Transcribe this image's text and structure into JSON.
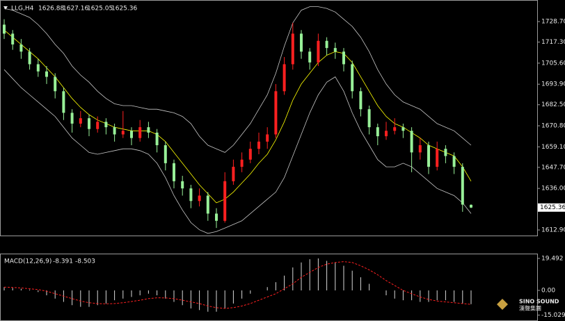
{
  "chart_data": [
    {
      "type": "candlestick",
      "title": "LLG,H4",
      "up_color": "#ff2020",
      "down_color": "#98f098",
      "ylim": [
        1610.2,
        1737.6
      ],
      "yticks": [
        {
          "value": 1728.7,
          "label": "1728.70"
        },
        {
          "value": 1717.3,
          "label": "1717.30"
        },
        {
          "value": 1705.6,
          "label": "1705.60"
        },
        {
          "value": 1693.9,
          "label": "1693.90"
        },
        {
          "value": 1682.5,
          "label": "1682.50"
        },
        {
          "value": 1670.8,
          "label": "1670.80"
        },
        {
          "value": 1659.1,
          "label": "1659.10"
        },
        {
          "value": 1647.7,
          "label": "1647.70"
        },
        {
          "value": 1636,
          "label": "1636.00"
        },
        {
          "value": 1612.9,
          "label": "1612.90"
        }
      ],
      "candles": [
        [
          1727,
          1730,
          1719,
          1722
        ],
        [
          1722,
          1724,
          1713,
          1716
        ],
        [
          1716,
          1719,
          1708,
          1712
        ],
        [
          1712,
          1714,
          1702,
          1705
        ],
        [
          1705,
          1708,
          1698,
          1701
        ],
        [
          1701,
          1704,
          1694,
          1698
        ],
        [
          1698,
          1700,
          1686,
          1690
        ],
        [
          1690,
          1692,
          1674,
          1678
        ],
        [
          1678,
          1680,
          1667,
          1672
        ],
        [
          1672,
          1679,
          1670,
          1675
        ],
        [
          1675,
          1677,
          1665,
          1669
        ],
        [
          1669,
          1676,
          1667,
          1673
        ],
        [
          1673,
          1675,
          1666,
          1670
        ],
        [
          1670,
          1672,
          1662,
          1666
        ],
        [
          1666,
          1679,
          1664,
          1668
        ],
        [
          1668,
          1670,
          1660,
          1664
        ],
        [
          1664,
          1674,
          1662,
          1670
        ],
        [
          1670,
          1673,
          1664,
          1667
        ],
        [
          1667,
          1669,
          1656,
          1660
        ],
        [
          1660,
          1662,
          1646,
          1650
        ],
        [
          1650,
          1652,
          1636,
          1640
        ],
        [
          1640,
          1643,
          1632,
          1636
        ],
        [
          1636,
          1638,
          1625,
          1629
        ],
        [
          1629,
          1636,
          1626,
          1632
        ],
        [
          1632,
          1634,
          1618,
          1622
        ],
        [
          1622,
          1625,
          1614,
          1618
        ],
        [
          1618,
          1645,
          1617,
          1640
        ],
        [
          1640,
          1652,
          1638,
          1648
        ],
        [
          1648,
          1656,
          1645,
          1652
        ],
        [
          1652,
          1662,
          1650,
          1658
        ],
        [
          1658,
          1667,
          1655,
          1662
        ],
        [
          1662,
          1670,
          1658,
          1666
        ],
        [
          1666,
          1694,
          1664,
          1690
        ],
        [
          1690,
          1709,
          1688,
          1705
        ],
        [
          1705,
          1728,
          1702,
          1722
        ],
        [
          1722,
          1724,
          1708,
          1712
        ],
        [
          1712,
          1714,
          1702,
          1706
        ],
        [
          1706,
          1722,
          1704,
          1718
        ],
        [
          1718,
          1720,
          1710,
          1714
        ],
        [
          1714,
          1717,
          1708,
          1712
        ],
        [
          1712,
          1714,
          1701,
          1705
        ],
        [
          1705,
          1707,
          1686,
          1690
        ],
        [
          1690,
          1692,
          1676,
          1680
        ],
        [
          1680,
          1682,
          1666,
          1670
        ],
        [
          1670,
          1672,
          1660,
          1665
        ],
        [
          1665,
          1673,
          1663,
          1668
        ],
        [
          1668,
          1675,
          1666,
          1670
        ],
        [
          1670,
          1672,
          1664,
          1668
        ],
        [
          1668,
          1670,
          1645,
          1656
        ],
        [
          1656,
          1664,
          1652,
          1660
        ],
        [
          1660,
          1662,
          1644,
          1648
        ],
        [
          1648,
          1662,
          1646,
          1658
        ],
        [
          1658,
          1660,
          1650,
          1654
        ],
        [
          1654,
          1656,
          1644,
          1648
        ],
        [
          1648,
          1650,
          1623,
          1627
        ],
        [
          1626.88,
          1627.16,
          1625.05,
          1625.36
        ]
      ],
      "series": [
        {
          "color": "#c8c8c8",
          "values": [
            1736,
            1735,
            1733,
            1731,
            1727,
            1722,
            1716,
            1711,
            1704,
            1699,
            1695,
            1690,
            1686,
            1683,
            1682,
            1682,
            1681,
            1680,
            1680,
            1679,
            1678,
            1676,
            1672,
            1665,
            1660,
            1658,
            1656,
            1660,
            1666,
            1672,
            1680,
            1688,
            1700,
            1715,
            1728,
            1735,
            1737,
            1737,
            1736,
            1734,
            1730,
            1726,
            1720,
            1712,
            1702,
            1694,
            1688,
            1684,
            1682,
            1680,
            1676,
            1672,
            1670,
            1668,
            1664,
            1660
          ]
        },
        {
          "color": "#c8c8c8",
          "values": [
            1702,
            1697,
            1692,
            1688,
            1684,
            1680,
            1676,
            1670,
            1664,
            1660,
            1656,
            1655,
            1656,
            1657,
            1658,
            1658,
            1657,
            1655,
            1650,
            1642,
            1632,
            1624,
            1617,
            1613,
            1611,
            1612,
            1614,
            1616,
            1618,
            1622,
            1626,
            1630,
            1634,
            1642,
            1654,
            1666,
            1678,
            1688,
            1695,
            1698,
            1690,
            1678,
            1668,
            1660,
            1652,
            1648,
            1648,
            1650,
            1648,
            1644,
            1640,
            1636,
            1634,
            1632,
            1628,
            1622
          ]
        },
        {
          "color": "#ffff00",
          "values": [
            1724,
            1720,
            1716,
            1712,
            1708,
            1703,
            1698,
            1692,
            1686,
            1681,
            1677,
            1674,
            1672,
            1670,
            1669,
            1668,
            1668,
            1668,
            1666,
            1662,
            1656,
            1650,
            1644,
            1638,
            1633,
            1628,
            1630,
            1634,
            1639,
            1644,
            1650,
            1655,
            1663,
            1673,
            1685,
            1694,
            1700,
            1706,
            1710,
            1712,
            1711,
            1706,
            1698,
            1690,
            1682,
            1676,
            1672,
            1670,
            1667,
            1664,
            1660,
            1658,
            1656,
            1654,
            1648,
            1640
          ]
        }
      ]
    },
    {
      "type": "macd",
      "title": "MACD(12,26,9)",
      "ylim": [
        -17.8,
        22.0
      ],
      "yticks": [
        19.492,
        {
          "value": 0,
          "label": "0.00"
        },
        -15.029
      ],
      "histogram": {
        "color": "#d8d8d8",
        "values": [
          2,
          1.5,
          1,
          0.5,
          -1,
          -3,
          -5,
          -7,
          -9,
          -10,
          -10,
          -9,
          -8,
          -6,
          -5,
          -4,
          -3,
          -2,
          -3,
          -5,
          -7,
          -9,
          -11,
          -12,
          -13,
          -13,
          -11,
          -8,
          -5,
          -2,
          0,
          2,
          5,
          9,
          14,
          17,
          19,
          19.5,
          18,
          17,
          15,
          12,
          8,
          4,
          0,
          -3,
          -5,
          -6,
          -6,
          -7,
          -7,
          -6,
          -6,
          -7,
          -8,
          -8.391
        ]
      },
      "signal": {
        "color": "#ff2020",
        "values": [
          2,
          1.8,
          1.5,
          1,
          0.5,
          -0.5,
          -2,
          -3.5,
          -5,
          -6.5,
          -7.5,
          -8,
          -8.2,
          -8,
          -7.5,
          -6.8,
          -6,
          -5,
          -4.5,
          -4.6,
          -5,
          -6,
          -7,
          -8,
          -9.5,
          -10.5,
          -11,
          -10.5,
          -9.5,
          -8,
          -6,
          -4,
          -2,
          1,
          4,
          8,
          11,
          14,
          16,
          17,
          17.5,
          17,
          15,
          12.5,
          9.5,
          6,
          3,
          0,
          -2,
          -4,
          -5.5,
          -6.5,
          -7,
          -7.5,
          -8,
          -8.503
        ]
      }
    }
  ],
  "logo": {
    "name": "SINO SOUND",
    "subtitle": "漢聲集團"
  }
}
